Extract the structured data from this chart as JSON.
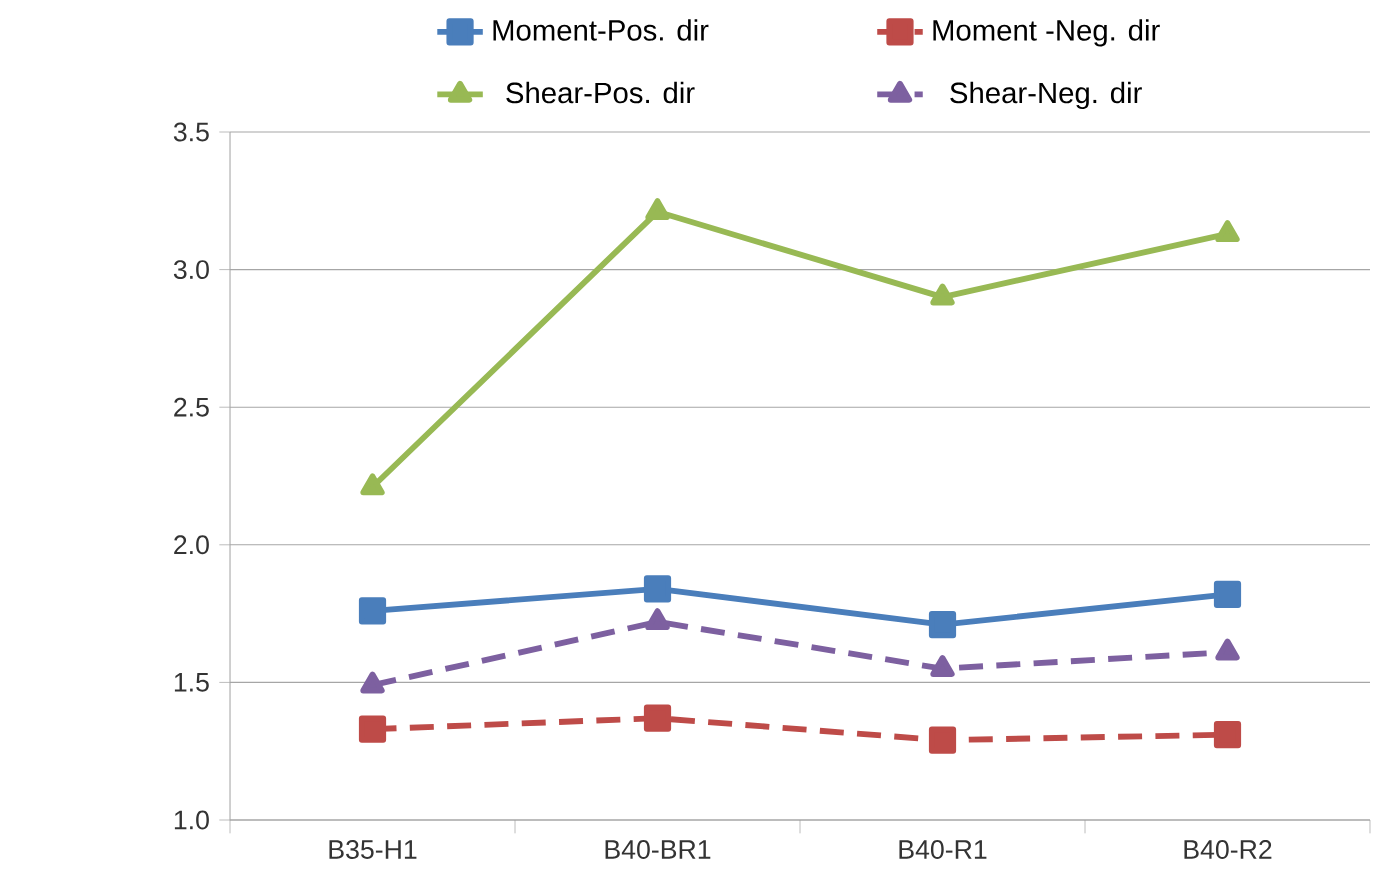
{
  "chart_data": {
    "type": "line",
    "categories": [
      "B35-H1",
      "B40-BR1",
      "B40-R1",
      "B40-R2"
    ],
    "series": [
      {
        "name": "Moment-Pos. dir",
        "color": "#4a7ebb",
        "values": [
          1.76,
          1.84,
          1.71,
          1.82
        ],
        "marker": "square",
        "line_style": "solid"
      },
      {
        "name": "Moment -Neg. dir",
        "color": "#be4b48",
        "values": [
          1.33,
          1.37,
          1.29,
          1.31
        ],
        "marker": "square",
        "line_style": "dashed"
      },
      {
        "name": "Shear-Pos. dir",
        "color": "#98b954",
        "values": [
          2.21,
          3.21,
          2.9,
          3.13
        ],
        "marker": "triangle",
        "line_style": "solid"
      },
      {
        "name": "Shear-Neg. dir",
        "color": "#7d60a0",
        "values": [
          1.49,
          1.72,
          1.55,
          1.61
        ],
        "marker": "triangle",
        "line_style": "dashed"
      }
    ],
    "ylim": [
      1.0,
      3.5
    ],
    "yticks": [
      {
        "value": 1.0,
        "label": "1.0"
      },
      {
        "value": 1.5,
        "label": "1.5"
      },
      {
        "value": 2.0,
        "label": "2.0"
      },
      {
        "value": 2.5,
        "label": "2.5"
      },
      {
        "value": 3.0,
        "label": "3.0"
      },
      {
        "value": 3.5,
        "label": "3.5"
      }
    ],
    "grid": "y",
    "legend": "top"
  }
}
